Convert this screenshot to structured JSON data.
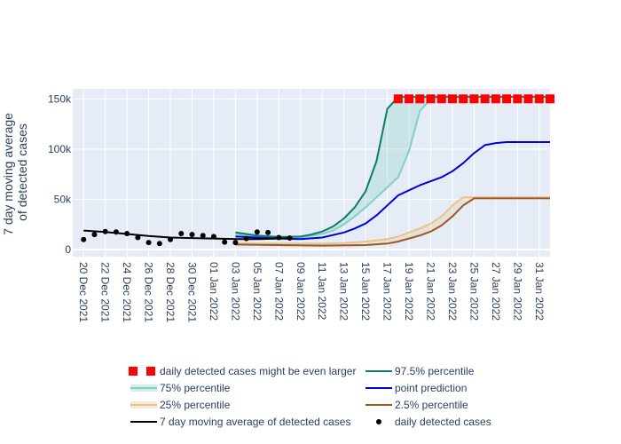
{
  "chart_data": {
    "type": "line",
    "ylabel_lines": [
      "7 day moving average",
      "of detected cases"
    ],
    "ylim": [
      -7000,
      160000
    ],
    "y_ticks": [
      {
        "v": 0,
        "label": "0"
      },
      {
        "v": 50000,
        "label": "50k"
      },
      {
        "v": 100000,
        "label": "100k"
      },
      {
        "v": 150000,
        "label": "150k"
      }
    ],
    "x_ticks": [
      "20 Dec 2021",
      "22 Dec 2021",
      "24 Dec 2021",
      "26 Dec 2021",
      "28 Dec 2021",
      "30 Dec 2021",
      "01 Jan 2022",
      "03 Jan 2022",
      "05 Jan 2022",
      "07 Jan 2022",
      "09 Jan 2022",
      "11 Jan 2022",
      "13 Jan 2022",
      "15 Jan 2022",
      "17 Jan 2022",
      "19 Jan 2022",
      "21 Jan 2022",
      "23 Jan 2022",
      "25 Jan 2022",
      "27 Jan 2022",
      "29 Jan 2022",
      "31 Jan 2022"
    ],
    "x_start": "2021-12-19",
    "x_end": "2022-02-01",
    "colors": {
      "plot_bg": "#e5ecf6",
      "grid": "#ffffff",
      "p975": "#0a7d6b",
      "p75": "#7fd1c2",
      "fill_75": "rgba(127,209,194,0.28)",
      "point": "#0000dd",
      "p25": "#e6c48f",
      "fill_25": "rgba(230,196,143,0.28)",
      "p025": "#a0561e",
      "moving_avg": "#000000",
      "daily": "#000000",
      "larger": "#ff0000"
    },
    "series": [
      {
        "name": "97.5% percentile",
        "key": "p975",
        "x": [
          "2022-01-03",
          "2022-01-05",
          "2022-01-07",
          "2022-01-09",
          "2022-01-10",
          "2022-01-11",
          "2022-01-12",
          "2022-01-13",
          "2022-01-14",
          "2022-01-15",
          "2022-01-16",
          "2022-01-17",
          "2022-01-18",
          "2022-01-21",
          "2022-01-25",
          "2022-01-29",
          "2022-02-01"
        ],
        "y": [
          17000,
          14000,
          12500,
          13000,
          15000,
          18000,
          23000,
          31000,
          42000,
          58000,
          88000,
          140000,
          152000,
          152000,
          152000,
          152000,
          152000
        ]
      },
      {
        "name": "75% percentile",
        "key": "p75",
        "x": [
          "2022-01-03",
          "2022-01-05",
          "2022-01-07",
          "2022-01-09",
          "2022-01-11",
          "2022-01-12",
          "2022-01-13",
          "2022-01-14",
          "2022-01-15",
          "2022-01-16",
          "2022-01-17",
          "2022-01-18",
          "2022-01-19",
          "2022-01-20",
          "2022-01-21",
          "2022-01-22",
          "2022-01-25",
          "2022-01-29",
          "2022-02-01"
        ],
        "y": [
          15000,
          13000,
          12000,
          12000,
          15500,
          19000,
          25000,
          33000,
          42000,
          52000,
          62000,
          72000,
          98000,
          138000,
          150000,
          152000,
          152000,
          152000,
          152000
        ]
      },
      {
        "name": "point prediction",
        "key": "point",
        "x": [
          "2022-01-03",
          "2022-01-05",
          "2022-01-07",
          "2022-01-09",
          "2022-01-11",
          "2022-01-13",
          "2022-01-14",
          "2022-01-15",
          "2022-01-16",
          "2022-01-17",
          "2022-01-18",
          "2022-01-19",
          "2022-01-20",
          "2022-01-21",
          "2022-01-22",
          "2022-01-23",
          "2022-01-24",
          "2022-01-25",
          "2022-01-26",
          "2022-01-27",
          "2022-01-28",
          "2022-01-29",
          "2022-02-01"
        ],
        "y": [
          13000,
          12000,
          11000,
          10500,
          12000,
          17000,
          21000,
          26000,
          34000,
          44000,
          54000,
          59000,
          64000,
          68000,
          72000,
          78000,
          86000,
          96000,
          104000,
          106000,
          107000,
          107000,
          107000
        ]
      },
      {
        "name": "25% percentile",
        "key": "p25",
        "x": [
          "2022-01-03",
          "2022-01-07",
          "2022-01-11",
          "2022-01-13",
          "2022-01-15",
          "2022-01-17",
          "2022-01-18",
          "2022-01-19",
          "2022-01-20",
          "2022-01-21",
          "2022-01-22",
          "2022-01-23",
          "2022-01-24",
          "2022-01-25",
          "2022-01-29",
          "2022-02-01"
        ],
        "y": [
          6000,
          6000,
          6000,
          6500,
          8000,
          10500,
          13000,
          17000,
          21000,
          26000,
          33000,
          44000,
          52000,
          52000,
          52000,
          52000
        ]
      },
      {
        "name": "2.5% percentile",
        "key": "p025",
        "x": [
          "2022-01-03",
          "2022-01-07",
          "2022-01-11",
          "2022-01-15",
          "2022-01-17",
          "2022-01-18",
          "2022-01-19",
          "2022-01-20",
          "2022-01-21",
          "2022-01-22",
          "2022-01-23",
          "2022-01-24",
          "2022-01-25",
          "2022-01-29",
          "2022-02-01"
        ],
        "y": [
          5000,
          4500,
          4000,
          4500,
          6000,
          8000,
          11000,
          14000,
          18000,
          24000,
          33000,
          44000,
          51000,
          51000,
          51000
        ]
      },
      {
        "name": "7 day moving average of detected cases",
        "key": "moving_avg",
        "x": [
          "2021-12-20",
          "2021-12-22",
          "2021-12-24",
          "2021-12-26",
          "2021-12-28",
          "2021-12-30",
          "2022-01-01",
          "2022-01-03",
          "2022-01-05",
          "2022-01-07",
          "2022-01-08"
        ],
        "y": [
          19000,
          17500,
          15500,
          13500,
          12000,
          11500,
          11000,
          10500,
          10500,
          11000,
          11500
        ]
      }
    ],
    "daily": {
      "name": "daily detected cases",
      "x": [
        "2021-12-20",
        "2021-12-21",
        "2021-12-22",
        "2021-12-23",
        "2021-12-24",
        "2021-12-25",
        "2021-12-26",
        "2021-12-27",
        "2021-12-28",
        "2021-12-29",
        "2021-12-30",
        "2021-12-31",
        "2022-01-01",
        "2022-01-02",
        "2022-01-03",
        "2022-01-04",
        "2022-01-05",
        "2022-01-06",
        "2022-01-07",
        "2022-01-08"
      ],
      "y": [
        10000,
        15000,
        18000,
        17500,
        16000,
        12000,
        7000,
        6000,
        10000,
        16000,
        15000,
        14000,
        13000,
        7500,
        7000,
        11000,
        17500,
        17000,
        12000,
        11500
      ]
    },
    "larger": {
      "name": "daily detected cases might be even larger",
      "x": [
        "2022-01-18",
        "2022-01-19",
        "2022-01-20",
        "2022-01-21",
        "2022-01-22",
        "2022-01-23",
        "2022-01-24",
        "2022-01-25",
        "2022-01-26",
        "2022-01-27",
        "2022-01-28",
        "2022-01-29",
        "2022-01-30",
        "2022-01-31",
        "2022-02-01"
      ],
      "y": [
        150000,
        150000,
        150000,
        150000,
        150000,
        150000,
        150000,
        150000,
        150000,
        150000,
        150000,
        150000,
        150000,
        150000,
        150000
      ]
    },
    "legend": {
      "placement": "bottom",
      "items": [
        {
          "label": "daily detected cases might be even larger",
          "key": "larger",
          "kind": "squares"
        },
        {
          "label": "97.5% percentile",
          "key": "p975",
          "kind": "line"
        },
        {
          "label": "75% percentile",
          "key": "p75",
          "kind": "fill-line"
        },
        {
          "label": "point prediction",
          "key": "point",
          "kind": "line"
        },
        {
          "label": "25% percentile",
          "key": "p25",
          "kind": "fill-line"
        },
        {
          "label": "2.5% percentile",
          "key": "p025",
          "kind": "line"
        },
        {
          "label": "7 day moving average of detected cases",
          "key": "moving_avg",
          "kind": "line"
        },
        {
          "label": "daily detected cases",
          "key": "daily",
          "kind": "dot"
        }
      ]
    }
  }
}
